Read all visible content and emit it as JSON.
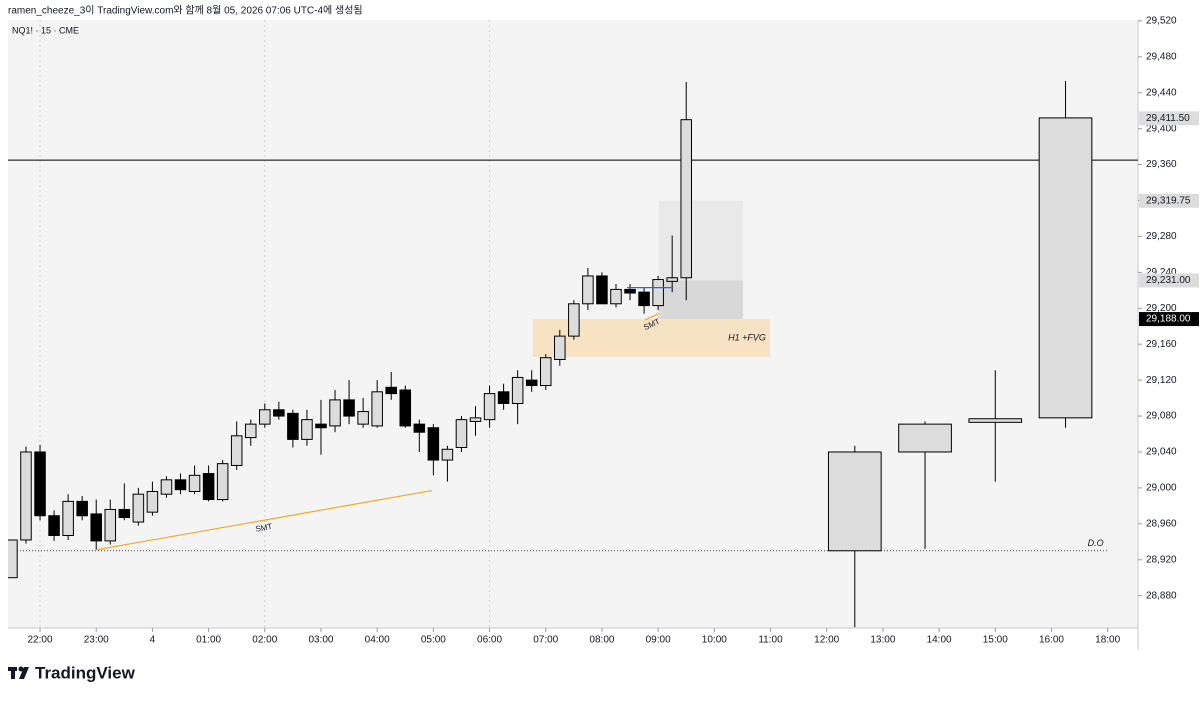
{
  "header": {
    "caption": "ramen_cheeze_3이 TradingView.com와 함께 8월 05, 2026 07:06 UTC-4에 생성됨",
    "symbol": "NQ1! · 15 · CME"
  },
  "footer": {
    "brand": "TradingView"
  },
  "chart_data": {
    "type": "candlestick",
    "up_color": "#dcdcdc",
    "down_color": "#000000",
    "border_color": "#000000",
    "x": [
      -0.5,
      -0.25,
      0,
      0.25,
      0.5,
      0.75,
      1,
      1.25,
      1.5,
      1.75,
      2,
      2.25,
      2.5,
      2.75,
      3,
      3.25,
      3.5,
      3.75,
      4,
      4.25,
      4.5,
      4.75,
      5,
      5.25,
      5.5,
      5.75,
      6,
      6.25,
      6.5,
      6.75,
      7,
      7.25,
      7.5,
      7.75,
      8,
      8.25,
      8.5,
      8.75,
      9,
      9.25,
      9.5,
      9.75,
      10,
      10.25,
      10.5,
      10.75,
      11,
      11.25,
      11.5,
      14.5,
      15.75,
      17,
      18.25
    ],
    "open": [
      28900,
      28942,
      29040,
      28969,
      28947,
      28985,
      28971,
      28941,
      28976,
      28962,
      28973,
      28993,
      29009,
      28996,
      29016,
      28987,
      29025,
      29056,
      29071,
      29087,
      29083,
      29054,
      29071,
      29069,
      29098,
      29071,
      29069,
      29112,
      29109,
      29071,
      29067,
      29031,
      29045,
      29074,
      29076,
      29107,
      29094,
      29120,
      29114,
      29143,
      29169,
      29205,
      29236,
      29205,
      29221,
      29218,
      29203,
      29230,
      29234,
      28930,
      29040,
      29073,
      29078
    ],
    "high": [
      28942,
      29046,
      29048,
      28975,
      28993,
      28991,
      28987,
      28987,
      29005,
      29000,
      29007,
      29013,
      29016,
      29025,
      29025,
      29031,
      29074,
      29076,
      29094,
      29096,
      29087,
      29087,
      29098,
      29109,
      29120,
      29100,
      29120,
      29129,
      29114,
      29076,
      29071,
      29047,
      29080,
      29091,
      29114,
      29116,
      29131,
      29131,
      29149,
      29176,
      29209,
      29245,
      29240,
      29227,
      29227,
      29223,
      29236,
      29281,
      29452,
      29047,
      29074,
      29131,
      29453
    ],
    "low": [
      28900,
      28938,
      28964,
      28941,
      28942,
      28964,
      28931,
      28937,
      28964,
      28958,
      28969,
      28989,
      28993,
      28993,
      28985,
      28985,
      29020,
      29047,
      29067,
      29076,
      29045,
      29047,
      29037,
      29062,
      29071,
      29067,
      29067,
      29098,
      29067,
      29040,
      29014,
      29007,
      29040,
      29058,
      29067,
      29087,
      29071,
      29107,
      29109,
      29136,
      29165,
      29198,
      29205,
      29201,
      29209,
      29194,
      29198,
      29218,
      29209,
      28845,
      28932,
      29007,
      29067
    ],
    "close": [
      28942,
      29040,
      28969,
      28947,
      28985,
      28969,
      28941,
      28976,
      28967,
      28993,
      28996,
      29009,
      28998,
      29014,
      28987,
      29027,
      29058,
      29071,
      29087,
      29080,
      29054,
      29076,
      29067,
      29098,
      29080,
      29085,
      29107,
      29105,
      29069,
      29062,
      29031,
      29043,
      29076,
      29078,
      29105,
      29094,
      29123,
      29114,
      29145,
      29169,
      29205,
      29236,
      29205,
      29221,
      29217,
      29203,
      29232,
      29234,
      29410,
      29040,
      29071,
      29077,
      29412
    ],
    "xlim": [
      -0.57,
      19.54
    ],
    "ylim": [
      28844,
      29521
    ],
    "yticks": [
      {
        "value": 28880,
        "label": "28,880"
      },
      {
        "value": 28920,
        "label": "28,920"
      },
      {
        "value": 28960,
        "label": "28,960"
      },
      {
        "value": 29000,
        "label": "29,000"
      },
      {
        "value": 29040,
        "label": "29,040"
      },
      {
        "value": 29080,
        "label": "29,080"
      },
      {
        "value": 29120,
        "label": "29,120"
      },
      {
        "value": 29160,
        "label": "29,160"
      },
      {
        "value": 29200,
        "label": "29,200"
      },
      {
        "value": 29240,
        "label": "29,240"
      },
      {
        "value": 29280,
        "label": "29,280"
      },
      {
        "value": 29320,
        "label": "29,320"
      },
      {
        "value": 29360,
        "label": "29,360"
      },
      {
        "value": 29400,
        "label": "29,400"
      },
      {
        "value": 29440,
        "label": "29,440"
      },
      {
        "value": 29480,
        "label": "29,480"
      },
      {
        "value": 29520,
        "label": "29,520"
      }
    ],
    "xticks": [
      {
        "value": 0,
        "label": "22:00"
      },
      {
        "value": 1,
        "label": "23:00"
      },
      {
        "value": 2,
        "label": "4"
      },
      {
        "value": 3,
        "label": "01:00"
      },
      {
        "value": 4,
        "label": "02:00"
      },
      {
        "value": 5,
        "label": "03:00"
      },
      {
        "value": 6,
        "label": "04:00"
      },
      {
        "value": 7,
        "label": "05:00"
      },
      {
        "value": 8,
        "label": "06:00"
      },
      {
        "value": 9,
        "label": "07:00"
      },
      {
        "value": 10,
        "label": "08:00"
      },
      {
        "value": 11,
        "label": "09:00"
      },
      {
        "value": 12,
        "label": "10:00"
      },
      {
        "value": 13,
        "label": "11:00"
      },
      {
        "value": 14,
        "label": "12:00"
      },
      {
        "value": 15,
        "label": "13:00"
      },
      {
        "value": 16,
        "label": "14:00"
      },
      {
        "value": 17,
        "label": "15:00"
      },
      {
        "value": 18,
        "label": "16:00"
      },
      {
        "value": 19,
        "label": "18:00"
      }
    ],
    "session_lines": [
      0,
      4,
      8
    ],
    "price_labels": [
      {
        "value": 29411.5,
        "label": "29,411.50",
        "color": "#dcdcdc"
      },
      {
        "value": 29319.75,
        "label": "29,319.75",
        "color": "#dcdcdc"
      },
      {
        "value": 29231,
        "label": "29,231.00",
        "color": "#dcdcdc"
      },
      {
        "value": 29188,
        "label": "29,188.00",
        "color": "#000000"
      }
    ],
    "hline": {
      "value": 29365,
      "color": "#000000"
    },
    "daily_open": {
      "label": "D.O",
      "value": 28930,
      "x": [
        -0.57,
        19
      ]
    },
    "boxes": [
      {
        "x": [
          11.01,
          12.51
        ],
        "y": [
          29231,
          29319.75
        ],
        "color": "#e9e9e9"
      },
      {
        "x": [
          11.01,
          12.51
        ],
        "y": [
          29188,
          29231
        ],
        "color": "#d8d8d8"
      },
      {
        "label": "H1 +FVG",
        "x": [
          8.77,
          12.99
        ],
        "y": [
          29146,
          29188
        ],
        "color": "#f7e3c4"
      }
    ],
    "trendlines": [
      {
        "label": "SMT",
        "x": [
          1.0,
          6.97
        ],
        "y": [
          28931,
          28997
        ],
        "color": "#f5a623"
      },
      {
        "label": "SMT",
        "x": [
          10.77,
          11.01
        ],
        "y": [
          29187,
          29194
        ],
        "color": "#f5a623"
      },
      {
        "x": [
          10.45,
          11.27
        ],
        "y": [
          29223,
          29223
        ],
        "color": "#2962ff"
      }
    ]
  }
}
